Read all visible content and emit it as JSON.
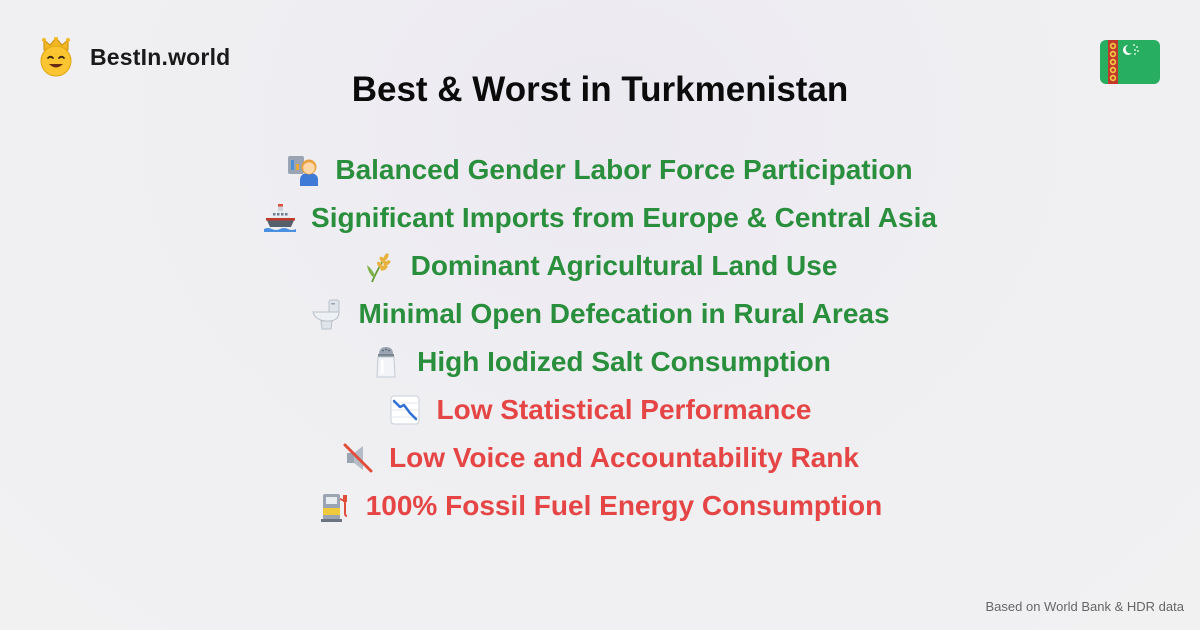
{
  "brand": {
    "name": "BestIn.world",
    "logo_icon": "crowned-smiley-icon"
  },
  "flag": {
    "icon": "turkmenistan-flag-icon",
    "colors": [
      "#27ae60",
      "#d83a2b",
      "#ffffff"
    ]
  },
  "title": "Best & Worst in Turkmenistan",
  "colors": {
    "best": "#2a8f3c",
    "worst": "#e54545",
    "title": "#0b0b0b",
    "footer": "#666666"
  },
  "items": [
    {
      "icon": "woman-office-worker-icon",
      "text": "Balanced Gender Labor Force Participation",
      "kind": "best"
    },
    {
      "icon": "ship-icon",
      "text": "Significant Imports from Europe & Central Asia",
      "kind": "best"
    },
    {
      "icon": "wheat-icon",
      "text": "Dominant Agricultural Land Use",
      "kind": "best"
    },
    {
      "icon": "toilet-icon",
      "text": "Minimal Open Defecation in Rural Areas",
      "kind": "best"
    },
    {
      "icon": "salt-shaker-icon",
      "text": "High Iodized Salt Consumption",
      "kind": "best"
    },
    {
      "icon": "chart-decreasing-icon",
      "text": "Low Statistical Performance",
      "kind": "worst"
    },
    {
      "icon": "muted-speaker-icon",
      "text": "Low Voice and Accountability Rank",
      "kind": "worst"
    },
    {
      "icon": "fuel-pump-icon",
      "text": "100% Fossil Fuel Energy Consumption",
      "kind": "worst"
    }
  ],
  "footer": "Based on World Bank & HDR data"
}
